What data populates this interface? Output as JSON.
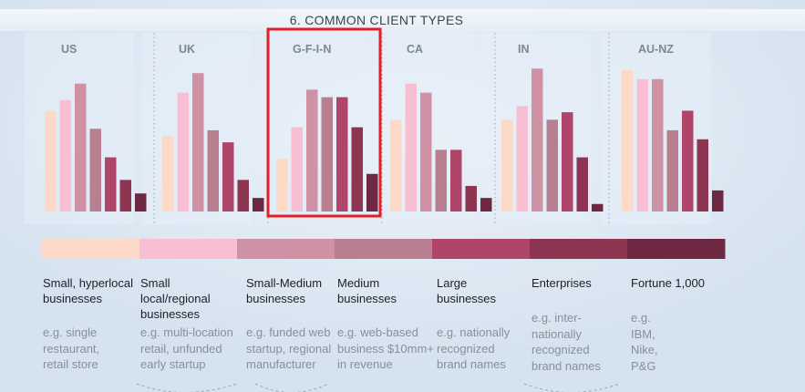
{
  "title": "6. COMMON CLIENT TYPES",
  "colors": [
    "#fdd9c8",
    "#f8bfd2",
    "#cf92a5",
    "#b77f8f",
    "#b0456a",
    "#8c3652",
    "#6e2841"
  ],
  "highlight_color": "#e21f26",
  "chart_data": {
    "type": "bar",
    "title": "6. COMMON CLIENT TYPES",
    "xlabel": "",
    "ylabel": "",
    "grid": false,
    "panels": [
      {
        "name": "US",
        "values": [
          67,
          74,
          85,
          55,
          36,
          21,
          12
        ]
      },
      {
        "name": "UK",
        "values": [
          50,
          79,
          92,
          54,
          46,
          21,
          9
        ]
      },
      {
        "name": "G-F-I-N",
        "values": [
          35,
          56,
          81,
          76,
          76,
          56,
          25
        ],
        "highlighted": true
      },
      {
        "name": "CA",
        "values": [
          61,
          85,
          79,
          41,
          41,
          17,
          9
        ]
      },
      {
        "name": "IN",
        "values": [
          61,
          70,
          95,
          61,
          66,
          36,
          5
        ]
      },
      {
        "name": "AU-NZ",
        "values": [
          94,
          88,
          88,
          54,
          67,
          48,
          14
        ]
      }
    ],
    "categories": [
      "Small, hyperlocal businesses",
      "Small local/regional businesses",
      "Small-Medium businesses",
      "Medium businesses",
      "Large businesses",
      "Enterprises",
      "Fortune 1,000"
    ]
  },
  "legend": [
    {
      "label": [
        "Small, hyperlocal",
        "businesses"
      ],
      "example": [
        "e.g. single",
        "restaurant,",
        "retail store"
      ]
    },
    {
      "label": [
        "Small local/regional",
        "businesses"
      ],
      "example": [
        "e.g. multi-location",
        "retail, unfunded",
        "early startup"
      ]
    },
    {
      "label": [
        "Small-Medium",
        "businesses"
      ],
      "example": [
        "e.g. funded web",
        "startup, regional",
        "manufacturer"
      ]
    },
    {
      "label": [
        "Medium",
        "businesses"
      ],
      "example": [
        "e.g. web-based",
        "business $10mm+",
        "in revenue"
      ]
    },
    {
      "label": [
        "Large",
        "businesses"
      ],
      "example": [
        "e.g. nationally",
        "recognized",
        "brand names"
      ]
    },
    {
      "label": [
        "Enterprises"
      ],
      "example": [
        "e.g. inter-",
        "nationally",
        "recognized",
        "brand names"
      ]
    },
    {
      "label": [
        "Fortune 1,000"
      ],
      "example": [
        "e.g.",
        "IBM,",
        "Nike,",
        "P&G"
      ]
    }
  ]
}
